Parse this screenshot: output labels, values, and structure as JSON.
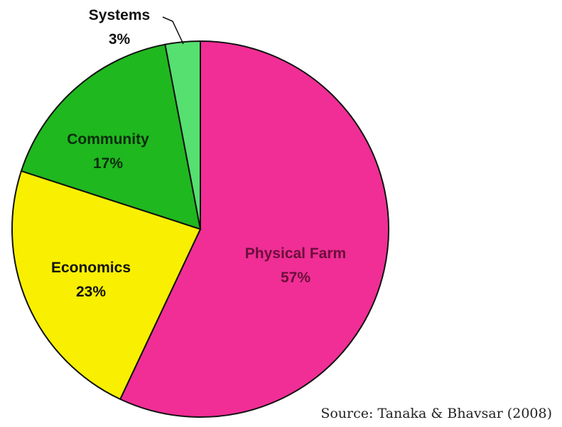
{
  "chart_data": {
    "type": "pie",
    "slices": [
      {
        "label": "Physical Farm",
        "value": 57,
        "value_label": "57%",
        "color": "#f02e96",
        "text_color": "#6b0f3a"
      },
      {
        "label": "Economics",
        "value": 23,
        "value_label": "23%",
        "color": "#f8f000",
        "text_color": "#111111"
      },
      {
        "label": "Community",
        "value": 17,
        "value_label": "17%",
        "color": "#1fb81f",
        "text_color": "#0b2b0b"
      },
      {
        "label": "Systems",
        "value": 3,
        "value_label": "3%",
        "color": "#55e070",
        "text_color": "#111111"
      }
    ],
    "start": "12 o'clock",
    "direction": "clockwise",
    "legend": "none"
  },
  "source": "Source: Tanaka & Bhavsar (2008)"
}
